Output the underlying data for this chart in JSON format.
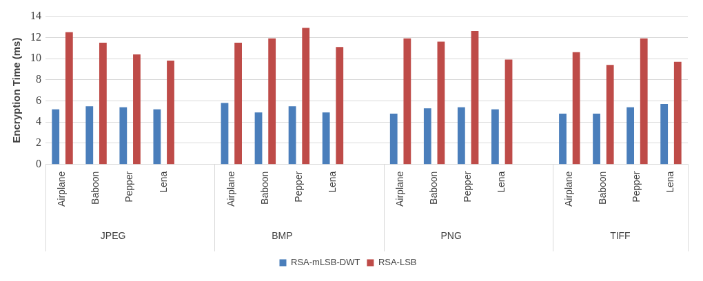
{
  "chart_data": {
    "type": "bar",
    "ylabel": "Encryption Time (ms)",
    "categories": [
      "Airplane",
      "Baboon",
      "Pepper",
      "Lena",
      null,
      "Airplane",
      "Baboon",
      "Pepper",
      "Lena",
      null,
      "Airplane",
      "Baboon",
      "Pepper",
      "Lena",
      null,
      "Airplane",
      "Baboon",
      "Pepper",
      "Lena"
    ],
    "annotations": [
      "JPEG",
      "BMP",
      "PNG",
      "TIFF"
    ],
    "series": [
      {
        "name": "RSA-mLSB-DWT",
        "color": "#4a7ebb",
        "values": [
          5.2,
          5.5,
          5.4,
          5.2,
          null,
          5.8,
          4.9,
          5.5,
          4.9,
          null,
          4.8,
          5.3,
          5.4,
          5.2,
          null,
          4.8,
          4.8,
          5.4,
          5.7
        ]
      },
      {
        "name": "RSA-LSB",
        "color": "#be4b48",
        "values": [
          12.5,
          11.5,
          10.4,
          9.8,
          null,
          11.5,
          11.9,
          12.9,
          11.1,
          null,
          11.9,
          11.6,
          12.6,
          9.9,
          null,
          10.6,
          9.4,
          11.9,
          9.7
        ]
      }
    ],
    "ylim": [
      0,
      14
    ],
    "yticks": [
      0,
      2,
      4,
      6,
      8,
      10,
      12,
      14
    ],
    "grid": "y",
    "legend": "bottom"
  }
}
